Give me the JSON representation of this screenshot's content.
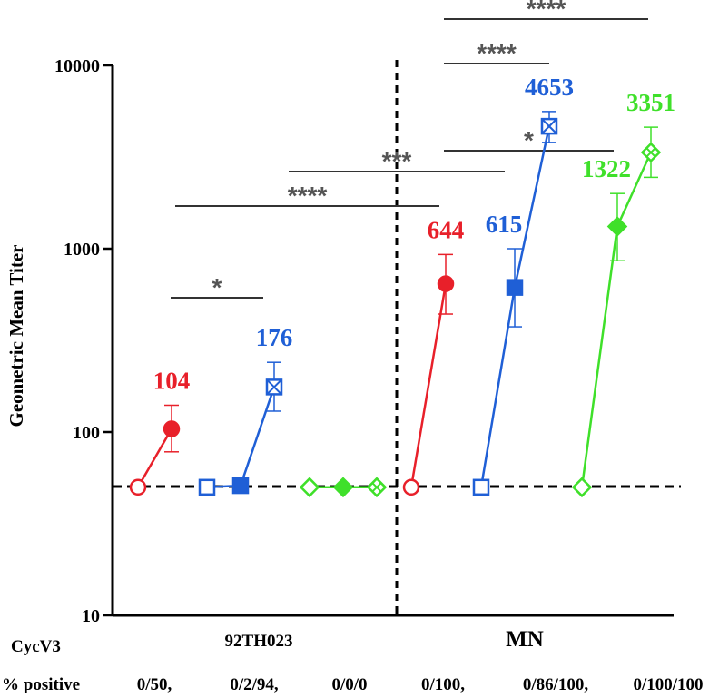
{
  "chart_data": {
    "type": "scatter",
    "y_scale": "log",
    "ylim": [
      10,
      10000
    ],
    "ylabel": "Geometric Mean Titer",
    "yticks": [
      "10",
      "100",
      "1000",
      "10000"
    ],
    "baseline_value": 50,
    "panels": [
      {
        "name": "92TH023"
      },
      {
        "name": "MN"
      }
    ],
    "row_labels": {
      "cycv3": "CycV3",
      "percent_positive": "% positive"
    },
    "percent_positive": [
      "0/50,",
      "0/2/94,",
      "0/0/0",
      "0/100,",
      "0/86/100,",
      "0/100/100"
    ],
    "series": [
      {
        "name": "92TH023 red",
        "color": "#e8202a",
        "panel": 0,
        "slot_start": 0,
        "values": [
          50,
          104
        ],
        "err_high": [
          null,
          140
        ],
        "err_low": [
          null,
          78
        ],
        "markers": [
          "circle-open",
          "circle-filled"
        ],
        "label": "104"
      },
      {
        "name": "92TH023 blue",
        "color": "#1f5fd6",
        "panel": 0,
        "slot_start": 2,
        "values": [
          50,
          51,
          176
        ],
        "err_high": [
          null,
          null,
          240
        ],
        "err_low": [
          null,
          null,
          130
        ],
        "markers": [
          "square-open",
          "square-filled",
          "square-cross"
        ],
        "label": "176"
      },
      {
        "name": "92TH023 green",
        "color": "#3fe02a",
        "panel": 0,
        "slot_start": 5,
        "values": [
          50,
          50,
          50
        ],
        "err_high": [
          null,
          null,
          null
        ],
        "err_low": [
          null,
          null,
          null
        ],
        "markers": [
          "diamond-open",
          "diamond-filled",
          "diamond-cross"
        ],
        "label": ""
      },
      {
        "name": "MN red",
        "color": "#e8202a",
        "panel": 1,
        "slot_start": 0,
        "values": [
          50,
          644
        ],
        "err_high": [
          null,
          930
        ],
        "err_low": [
          null,
          440
        ],
        "markers": [
          "circle-open",
          "circle-filled"
        ],
        "label": "644"
      },
      {
        "name": "MN blue",
        "color": "#1f5fd6",
        "panel": 1,
        "slot_start": 2,
        "values": [
          50,
          615,
          4653
        ],
        "err_high": [
          null,
          1000,
          5600
        ],
        "err_low": [
          null,
          375,
          3800
        ],
        "markers": [
          "square-open",
          "square-filled",
          "square-cross"
        ],
        "label_mid": "615",
        "label": "4653"
      },
      {
        "name": "MN green",
        "color": "#3fe02a",
        "panel": 1,
        "slot_start": 5,
        "values": [
          50,
          1322,
          3351
        ],
        "err_high": [
          null,
          2000,
          4600
        ],
        "err_low": [
          null,
          860,
          2450
        ],
        "markers": [
          "diamond-open",
          "diamond-filled",
          "diamond-cross"
        ],
        "label_mid": "1322",
        "label": "3351"
      }
    ],
    "significance": [
      {
        "label": "*",
        "from": "92TH023 red",
        "to": "92TH023 blue"
      },
      {
        "label": "****",
        "from": "92TH023 red",
        "to": "MN red"
      },
      {
        "label": "***",
        "from": "92TH023 blue",
        "to": "MN blue"
      },
      {
        "label": "*",
        "from": "MN red",
        "to": "MN green"
      },
      {
        "label": "****",
        "from": "MN red",
        "to": "MN blue"
      },
      {
        "label": "****",
        "from": "MN red",
        "to": "MN green"
      }
    ]
  }
}
